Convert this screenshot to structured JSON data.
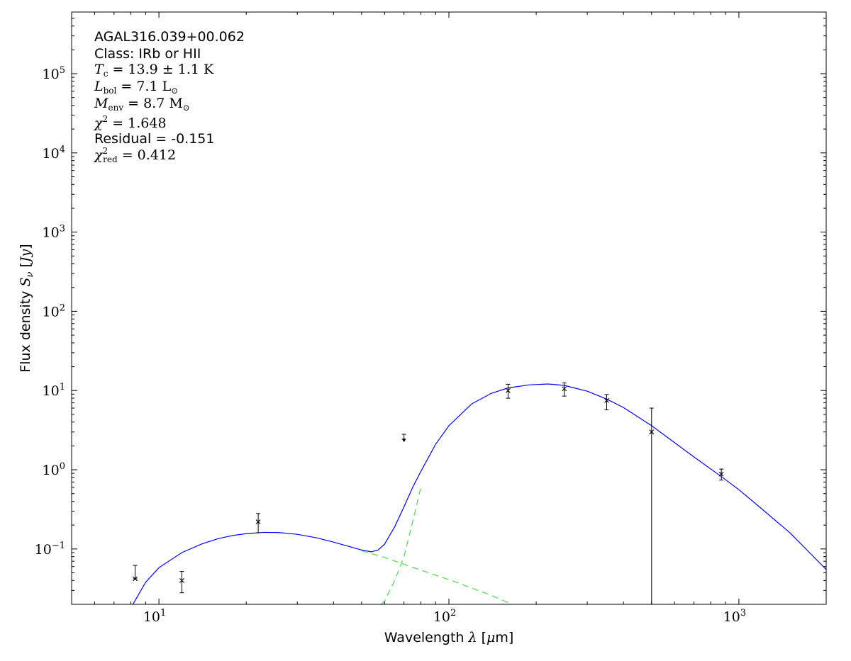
{
  "chart_data": {
    "type": "scatter",
    "xscale": "log",
    "yscale": "log",
    "xlim": [
      5,
      2000
    ],
    "ylim": [
      0.02,
      600000
    ],
    "x_ticks": [
      10,
      100,
      1000
    ],
    "y_ticks": [
      0.1,
      1,
      10,
      100,
      1000,
      10000,
      100000
    ],
    "x_tick_labels": [
      {
        "base": "10",
        "exp": "1"
      },
      {
        "base": "10",
        "exp": "2"
      },
      {
        "base": "10",
        "exp": "3"
      }
    ],
    "y_tick_labels": [
      {
        "base": "10",
        "exp": "−1"
      },
      {
        "base": "10",
        "exp": "0"
      },
      {
        "base": "10",
        "exp": "1"
      },
      {
        "base": "10",
        "exp": "2"
      },
      {
        "base": "10",
        "exp": "3"
      },
      {
        "base": "10",
        "exp": "4"
      },
      {
        "base": "10",
        "exp": "5"
      }
    ],
    "xlabel": "Wavelength λ [μm]",
    "ylabel": "Flux density Sν [Jy]",
    "annotations": {
      "source": "AGAL316.039+00.062",
      "class": "Class: IRb or HII",
      "tc": "Tc = 13.9 ± 1.1 K",
      "lbol": "Lbol = 7.1 L⊙",
      "menv": "Menv = 8.7 M⊙",
      "chi2": "χ2 = 1.648",
      "residual": "Residual = -0.151",
      "chi2red": "χ2red = 0.412"
    },
    "points": [
      {
        "x": 8.28,
        "y": 0.042,
        "yerr_low": 0.042,
        "yerr_high": 0.062
      },
      {
        "x": 12.0,
        "y": 0.04,
        "yerr_low": 0.028,
        "yerr_high": 0.052
      },
      {
        "x": 22.0,
        "y": 0.22,
        "yerr_low": 0.16,
        "yerr_high": 0.28
      },
      {
        "x": 160,
        "y": 10.0,
        "yerr_low": 8.0,
        "yerr_high": 12.0
      },
      {
        "x": 250,
        "y": 10.5,
        "yerr_low": 8.5,
        "yerr_high": 12.5
      },
      {
        "x": 350,
        "y": 7.5,
        "yerr_low": 5.7,
        "yerr_high": 8.9
      },
      {
        "x": 500,
        "y": 3.0,
        "yerr_low": 0.02,
        "yerr_high": 6.0
      },
      {
        "x": 870,
        "y": 0.88,
        "yerr_low": 0.74,
        "yerr_high": 1.02
      }
    ],
    "upper_limits": [
      {
        "x": 70,
        "y": 2.8,
        "y_arrow": 2.3
      }
    ],
    "series": [
      {
        "kind": "total",
        "color": "#0000ff",
        "style": "solid",
        "x": [
          8.0,
          9.0,
          10.0,
          12.0,
          14.0,
          16.0,
          18.0,
          20.0,
          23.0,
          26.0,
          30.0,
          35.0,
          40.0,
          45.0,
          50.0,
          54.0,
          57.0,
          60.0,
          65.0,
          70.0,
          75.0,
          80.0,
          90.0,
          100.0,
          120.0,
          140.0,
          160.0,
          190.0,
          220.0,
          250.0,
          300.0,
          350.0,
          400.0,
          500.0,
          600.0,
          700.0,
          870.0,
          1000.0,
          1200.0,
          1500.0,
          2000.0
        ],
        "y": [
          0.018,
          0.038,
          0.058,
          0.09,
          0.115,
          0.135,
          0.148,
          0.156,
          0.162,
          0.161,
          0.153,
          0.138,
          0.122,
          0.108,
          0.097,
          0.092,
          0.097,
          0.115,
          0.19,
          0.34,
          0.6,
          0.95,
          2.1,
          3.6,
          6.8,
          9.2,
          10.8,
          11.8,
          12.1,
          11.6,
          9.8,
          7.8,
          6.1,
          3.6,
          2.2,
          1.45,
          0.82,
          0.56,
          0.32,
          0.16,
          0.055
        ]
      },
      {
        "kind": "warm-component",
        "color": "#44dd44",
        "style": "dashed",
        "x": [
          50,
          60,
          70,
          80,
          100,
          120,
          140,
          160
        ],
        "y": [
          0.095,
          0.078,
          0.064,
          0.054,
          0.041,
          0.032,
          0.026,
          0.021
        ]
      },
      {
        "kind": "cold-component",
        "color": "#44dd44",
        "style": "dashed",
        "x": [
          58.5,
          60,
          65,
          70,
          75,
          80
        ],
        "y": [
          0.02,
          0.022,
          0.04,
          0.08,
          0.22,
          0.6
        ]
      }
    ]
  }
}
